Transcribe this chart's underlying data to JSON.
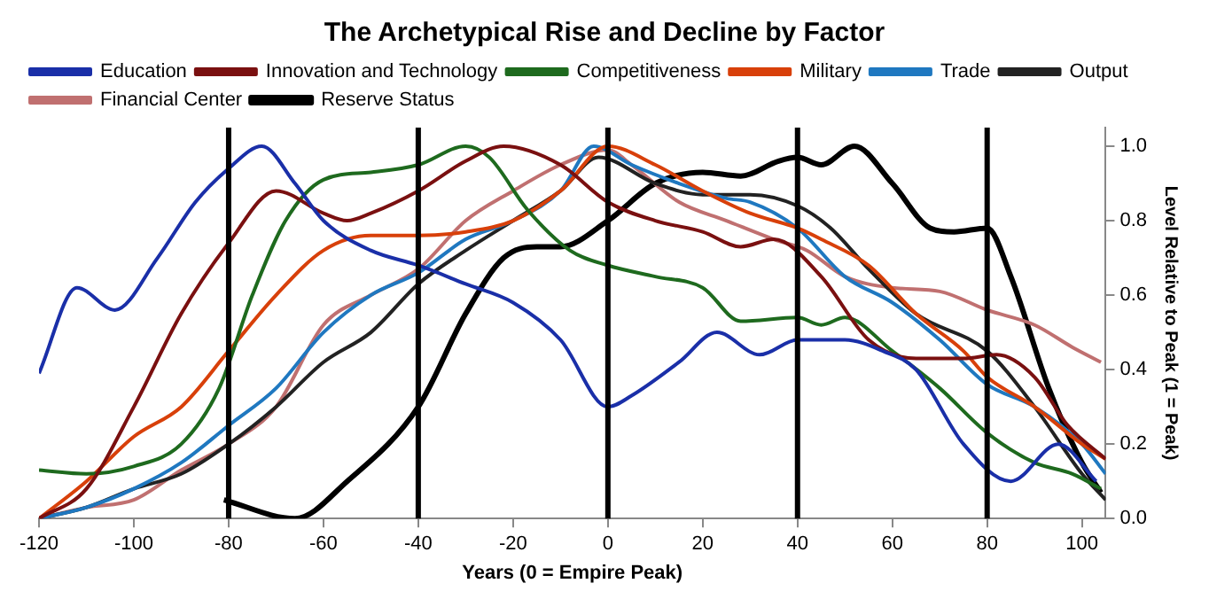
{
  "chart_data": {
    "type": "line",
    "title": "The Archetypical Rise and Decline by Factor",
    "xlabel": "Years (0 = Empire Peak)",
    "ylabel": "Level Relative to Peak (1 = Peak)",
    "xlim": [
      -120,
      105
    ],
    "xticks": [
      -120,
      -100,
      -80,
      -60,
      -40,
      -20,
      0,
      20,
      40,
      60,
      80,
      100
    ],
    "ylim": [
      0,
      1.05
    ],
    "yticks": [
      {
        "value": 0,
        "label": "0.0"
      },
      {
        "value": 0.2,
        "label": "0.2"
      },
      {
        "value": 0.4,
        "label": "0.4"
      },
      {
        "value": 0.6,
        "label": "0.6"
      },
      {
        "value": 0.8,
        "label": "0.8"
      },
      {
        "value": 1,
        "label": "1.0"
      }
    ],
    "grid": false,
    "legend": "top",
    "marker": "none",
    "line_style": "solid",
    "ref_lines": [
      {
        "axis": "x",
        "value": -80,
        "color": "#000000"
      },
      {
        "axis": "x",
        "value": -40,
        "color": "#000000"
      },
      {
        "axis": "x",
        "value": 0,
        "color": "#000000"
      },
      {
        "axis": "x",
        "value": 40,
        "color": "#000000"
      },
      {
        "axis": "x",
        "value": 80,
        "color": "#000000"
      }
    ],
    "series": [
      {
        "name": "Education",
        "color": "#1a2fa8",
        "x": [
          -120,
          -112,
          -104,
          -95,
          -87,
          -80,
          -73,
          -66,
          -60,
          -50,
          -40,
          -30,
          -20,
          -10,
          0,
          5,
          15,
          23,
          32,
          40,
          50,
          58,
          65,
          75,
          85,
          95,
          103
        ],
        "values": [
          0.39,
          0.62,
          0.56,
          0.7,
          0.85,
          0.94,
          1.0,
          0.9,
          0.8,
          0.72,
          0.68,
          0.63,
          0.58,
          0.48,
          0.3,
          0.33,
          0.42,
          0.5,
          0.44,
          0.48,
          0.48,
          0.45,
          0.4,
          0.2,
          0.1,
          0.2,
          0.1
        ]
      },
      {
        "name": "Innovation and Technology",
        "color": "#7a1010",
        "x": [
          -120,
          -110,
          -100,
          -90,
          -80,
          -70,
          -60,
          -55,
          -50,
          -40,
          -30,
          -22,
          -10,
          0,
          10,
          20,
          28,
          35,
          45,
          55,
          65,
          75,
          82,
          90,
          97,
          105
        ],
        "values": [
          0,
          0.08,
          0.3,
          0.55,
          0.74,
          0.88,
          0.82,
          0.8,
          0.82,
          0.88,
          0.96,
          1.0,
          0.95,
          0.85,
          0.8,
          0.77,
          0.73,
          0.75,
          0.65,
          0.48,
          0.43,
          0.43,
          0.44,
          0.38,
          0.25,
          0.16
        ]
      },
      {
        "name": "Competitiveness",
        "color": "#1e6a1e",
        "x": [
          -120,
          -110,
          -100,
          -90,
          -82,
          -75,
          -68,
          -60,
          -50,
          -40,
          -30,
          -25,
          -17,
          -8,
          0,
          10,
          20,
          28,
          40,
          45,
          50,
          60,
          70,
          80,
          90,
          98,
          104
        ],
        "values": [
          0.13,
          0.12,
          0.14,
          0.2,
          0.35,
          0.6,
          0.8,
          0.91,
          0.93,
          0.95,
          1.0,
          0.97,
          0.83,
          0.72,
          0.68,
          0.65,
          0.62,
          0.53,
          0.54,
          0.52,
          0.54,
          0.45,
          0.35,
          0.23,
          0.15,
          0.12,
          0.08
        ]
      },
      {
        "name": "Military",
        "color": "#d8400a",
        "x": [
          -120,
          -110,
          -100,
          -90,
          -80,
          -70,
          -60,
          -50,
          -40,
          -30,
          -20,
          -10,
          0,
          10,
          20,
          30,
          40,
          45,
          55,
          65,
          75,
          80,
          90,
          100,
          105
        ],
        "values": [
          0,
          0.1,
          0.22,
          0.3,
          0.45,
          0.6,
          0.72,
          0.76,
          0.76,
          0.77,
          0.8,
          0.88,
          1.0,
          0.95,
          0.88,
          0.82,
          0.78,
          0.75,
          0.68,
          0.55,
          0.45,
          0.38,
          0.3,
          0.2,
          0.16
        ]
      },
      {
        "name": "Trade",
        "color": "#1f78c0",
        "x": [
          -120,
          -110,
          -100,
          -90,
          -80,
          -70,
          -60,
          -50,
          -40,
          -30,
          -20,
          -10,
          -3,
          5,
          15,
          25,
          30,
          40,
          50,
          60,
          70,
          80,
          90,
          100,
          105
        ],
        "values": [
          0,
          0.03,
          0.08,
          0.15,
          0.25,
          0.35,
          0.5,
          0.6,
          0.66,
          0.75,
          0.8,
          0.88,
          1.0,
          0.95,
          0.9,
          0.86,
          0.85,
          0.78,
          0.65,
          0.58,
          0.48,
          0.36,
          0.3,
          0.2,
          0.12
        ]
      },
      {
        "name": "Output",
        "color": "#222222",
        "x": [
          -120,
          -110,
          -100,
          -90,
          -80,
          -70,
          -60,
          -50,
          -40,
          -30,
          -20,
          -10,
          -2,
          10,
          20,
          30,
          40,
          47,
          55,
          65,
          80,
          90,
          100,
          105
        ],
        "values": [
          0,
          0.03,
          0.08,
          0.12,
          0.2,
          0.3,
          0.42,
          0.5,
          0.63,
          0.72,
          0.8,
          0.88,
          0.97,
          0.9,
          0.87,
          0.87,
          0.84,
          0.78,
          0.67,
          0.55,
          0.45,
          0.3,
          0.12,
          0.05
        ]
      },
      {
        "name": "Financial Center",
        "color": "#c07070",
        "x": [
          -120,
          -110,
          -100,
          -90,
          -80,
          -70,
          -60,
          -50,
          -40,
          -30,
          -20,
          -10,
          0,
          5,
          15,
          25,
          35,
          42,
          50,
          60,
          70,
          80,
          90,
          98,
          104
        ],
        "values": [
          0,
          0.03,
          0.05,
          0.13,
          0.2,
          0.3,
          0.52,
          0.6,
          0.67,
          0.8,
          0.88,
          0.95,
          0.99,
          0.95,
          0.85,
          0.8,
          0.75,
          0.72,
          0.65,
          0.62,
          0.61,
          0.56,
          0.52,
          0.46,
          0.42
        ]
      },
      {
        "name": "Reserve Status",
        "color": "#000000",
        "x": [
          -81,
          -66,
          -55,
          -40,
          -30,
          -22,
          -15,
          -10,
          0,
          10,
          20,
          28,
          36,
          40,
          45,
          52,
          60,
          68,
          73,
          80,
          85,
          93,
          100,
          104
        ],
        "values": [
          0.05,
          0,
          0.1,
          0.3,
          0.55,
          0.7,
          0.73,
          0.73,
          0.8,
          0.9,
          0.93,
          0.92,
          0.96,
          0.97,
          0.95,
          1.0,
          0.9,
          0.78,
          0.77,
          0.78,
          0.65,
          0.35,
          0.15,
          0.07
        ]
      }
    ]
  }
}
